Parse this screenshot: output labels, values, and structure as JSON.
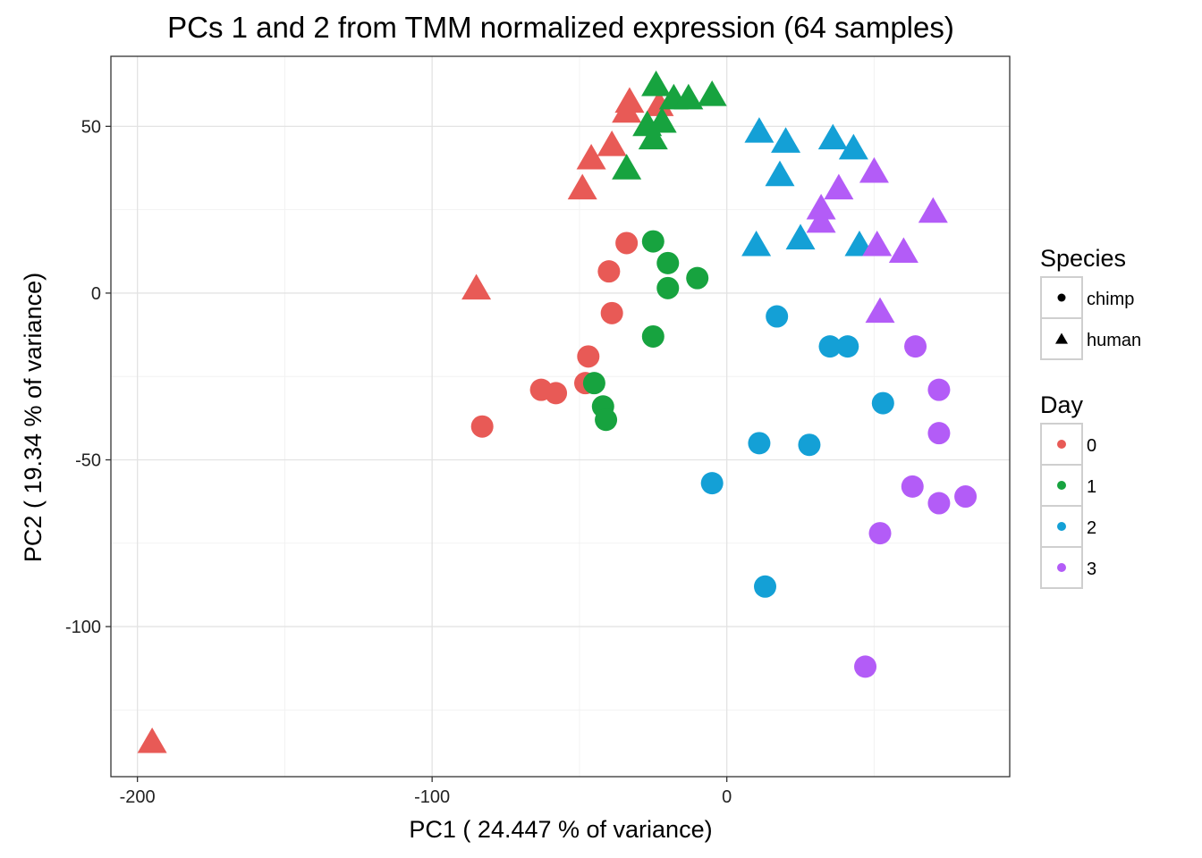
{
  "chart_data": {
    "type": "scatter",
    "title": "PCs 1 and 2 from TMM normalized expression (64 samples)",
    "xlabel": "PC1 ( 24.447 % of variance)",
    "ylabel": "PC2 ( 19.34 % of variance)",
    "xlim": [
      -209,
      96
    ],
    "ylim": [
      -145,
      71
    ],
    "x_ticks": [
      -200,
      -100,
      0
    ],
    "x_tick_labels": [
      "-200",
      "-100",
      "0"
    ],
    "y_ticks": [
      -100,
      -50,
      0,
      50
    ],
    "y_tick_labels": [
      "-100",
      "-50",
      "0",
      "50"
    ],
    "grid": true,
    "legends": [
      {
        "title": "Species",
        "kind": "shape",
        "entries": [
          {
            "label": "chimp",
            "shape": "circle"
          },
          {
            "label": "human",
            "shape": "triangle"
          }
        ]
      },
      {
        "title": "Day",
        "kind": "color",
        "entries": [
          {
            "label": "0",
            "color": "#E85A56"
          },
          {
            "label": "1",
            "color": "#17A33F"
          },
          {
            "label": "2",
            "color": "#14A0D6"
          },
          {
            "label": "3",
            "color": "#B35CF7"
          }
        ]
      }
    ],
    "legend_position": "right",
    "series": [
      {
        "day": "0",
        "species": "chimp",
        "color": "#E85A56",
        "shape": "circle",
        "points": [
          [
            -34,
            15
          ],
          [
            -40,
            6.5
          ],
          [
            -39,
            -6
          ],
          [
            -47,
            -19
          ],
          [
            -48,
            -27
          ],
          [
            -63,
            -29
          ],
          [
            -58,
            -30
          ],
          [
            -83,
            -40
          ]
        ]
      },
      {
        "day": "0",
        "species": "human",
        "color": "#E85A56",
        "shape": "triangle",
        "points": [
          [
            -33,
            57
          ],
          [
            -34,
            54
          ],
          [
            -23,
            56
          ],
          [
            -39,
            44
          ],
          [
            -46,
            40
          ],
          [
            -49,
            31
          ],
          [
            -85,
            1
          ],
          [
            -195,
            -135
          ]
        ]
      },
      {
        "day": "1",
        "species": "chimp",
        "color": "#17A33F",
        "shape": "circle",
        "points": [
          [
            -25,
            15.5
          ],
          [
            -20,
            9
          ],
          [
            -20,
            1.5
          ],
          [
            -10,
            4.5
          ],
          [
            -25,
            -13
          ],
          [
            -45,
            -27
          ],
          [
            -42,
            -34
          ],
          [
            -41,
            -38
          ]
        ]
      },
      {
        "day": "1",
        "species": "human",
        "color": "#17A33F",
        "shape": "triangle",
        "points": [
          [
            -24,
            62
          ],
          [
            -18,
            58
          ],
          [
            -13,
            58
          ],
          [
            -5,
            59
          ],
          [
            -27,
            50
          ],
          [
            -22,
            51
          ],
          [
            -25,
            46
          ],
          [
            -34,
            37
          ]
        ]
      },
      {
        "day": "2",
        "species": "chimp",
        "color": "#14A0D6",
        "shape": "circle",
        "points": [
          [
            17,
            -7
          ],
          [
            35,
            -16
          ],
          [
            41,
            -16
          ],
          [
            53,
            -33
          ],
          [
            11,
            -45
          ],
          [
            28,
            -45.5
          ],
          [
            -5,
            -57
          ],
          [
            13,
            -88
          ]
        ]
      },
      {
        "day": "2",
        "species": "human",
        "color": "#14A0D6",
        "shape": "triangle",
        "points": [
          [
            11,
            48
          ],
          [
            20,
            45
          ],
          [
            36,
            46
          ],
          [
            43,
            43
          ],
          [
            18,
            35
          ],
          [
            25,
            16
          ],
          [
            10,
            14
          ],
          [
            45,
            14
          ]
        ]
      },
      {
        "day": "3",
        "species": "chimp",
        "color": "#B35CF7",
        "shape": "circle",
        "points": [
          [
            64,
            -16
          ],
          [
            72,
            -29
          ],
          [
            72,
            -42
          ],
          [
            63,
            -58
          ],
          [
            72,
            -63
          ],
          [
            81,
            -61
          ],
          [
            52,
            -72
          ],
          [
            47,
            -112
          ]
        ]
      },
      {
        "day": "3",
        "species": "human",
        "color": "#B35CF7",
        "shape": "triangle",
        "points": [
          [
            50,
            36
          ],
          [
            38,
            31
          ],
          [
            32,
            25
          ],
          [
            32,
            21
          ],
          [
            70,
            24
          ],
          [
            51,
            14
          ],
          [
            60,
            12
          ],
          [
            52,
            -6
          ]
        ]
      }
    ]
  }
}
